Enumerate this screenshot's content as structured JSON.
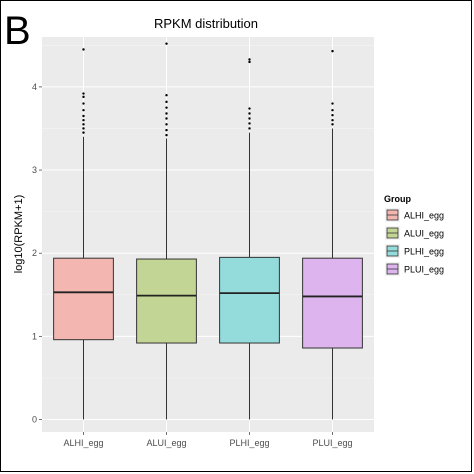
{
  "panel_label": "B",
  "chart_data": {
    "type": "boxplot",
    "title": "RPKM distribution",
    "xlabel": "",
    "ylabel": "log10(RPKM+1)",
    "ylim": [
      -0.15,
      4.6
    ],
    "yticks": [
      0,
      1,
      2,
      3,
      4
    ],
    "grid": true,
    "legend_placement": "right",
    "legend_title": "Group",
    "categories": [
      "ALHI_egg",
      "ALUI_egg",
      "PLHI_egg",
      "PLUI_egg"
    ],
    "colors": [
      "#F4B6B0",
      "#C3D594",
      "#94DCDC",
      "#DDB4EE"
    ],
    "boxes": [
      {
        "name": "ALHI_egg",
        "min": 0,
        "q1": 0.96,
        "median": 1.53,
        "q3": 1.94,
        "max": 3.4,
        "outliers": [
          3.45,
          3.5,
          3.55,
          3.6,
          3.65,
          3.72,
          3.8,
          3.88,
          3.92,
          4.45
        ]
      },
      {
        "name": "ALUI_egg",
        "min": 0,
        "q1": 0.92,
        "median": 1.49,
        "q3": 1.93,
        "max": 3.38,
        "outliers": [
          3.42,
          3.48,
          3.55,
          3.62,
          3.68,
          3.75,
          3.82,
          3.9,
          4.52
        ]
      },
      {
        "name": "PLHI_egg",
        "min": 0,
        "q1": 0.92,
        "median": 1.52,
        "q3": 1.95,
        "max": 3.45,
        "outliers": [
          3.5,
          3.56,
          3.62,
          3.68,
          3.74,
          4.3,
          4.33
        ]
      },
      {
        "name": "PLUI_egg",
        "min": 0,
        "q1": 0.86,
        "median": 1.48,
        "q3": 1.94,
        "max": 3.5,
        "outliers": [
          3.55,
          3.6,
          3.66,
          3.72,
          3.8,
          4.43
        ]
      }
    ]
  }
}
